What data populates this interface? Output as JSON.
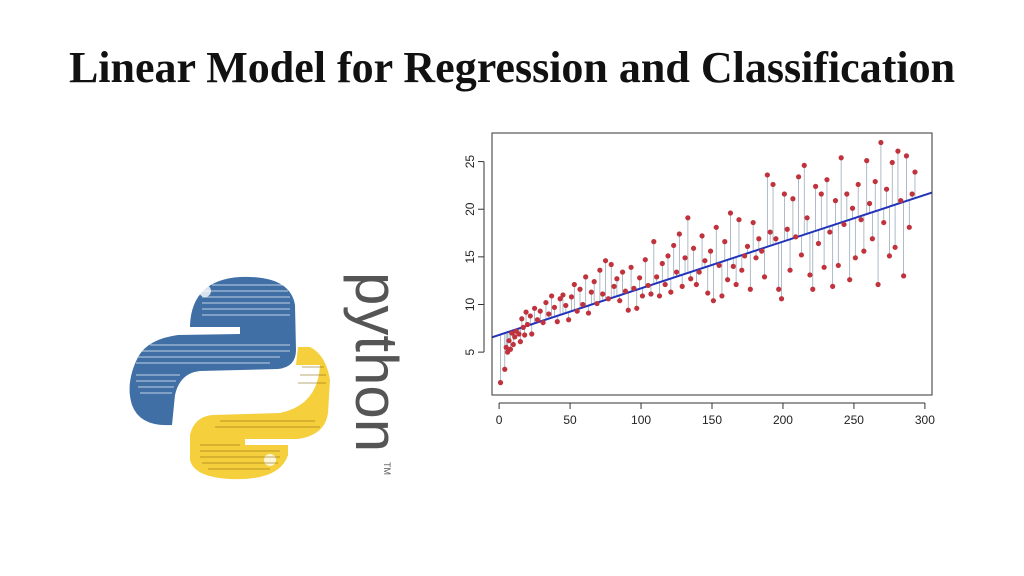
{
  "slide": {
    "title": "Linear Model for Regression and Classification"
  },
  "logo": {
    "icon": "python-logo-icon",
    "wordmark": "python",
    "trademark": "TM",
    "colors": {
      "blue": "#3f6fa5",
      "yellow": "#f5cf3c",
      "wordmark": "#555555"
    }
  },
  "chart_data": {
    "type": "scatter",
    "title": "",
    "xlabel": "",
    "ylabel": "",
    "xlim": [
      -5,
      305
    ],
    "ylim": [
      0.5,
      28
    ],
    "xticks": [
      0,
      50,
      100,
      150,
      200,
      250,
      300
    ],
    "yticks": [
      5,
      10,
      15,
      20,
      25
    ],
    "grid": false,
    "colors": {
      "points": "#c0323c",
      "fit_line": "#2233bb",
      "residuals": "#9aaabb"
    },
    "fit_line": {
      "intercept": 6.8,
      "slope": 0.049
    },
    "points": [
      [
        1,
        1.8
      ],
      [
        4,
        3.2
      ],
      [
        5,
        5.5
      ],
      [
        6,
        5.0
      ],
      [
        7,
        6.2
      ],
      [
        8,
        5.3
      ],
      [
        9,
        7.0
      ],
      [
        10,
        5.8
      ],
      [
        11,
        6.6
      ],
      [
        12,
        7.2
      ],
      [
        14,
        6.9
      ],
      [
        15,
        6.1
      ],
      [
        16,
        8.5
      ],
      [
        17,
        7.6
      ],
      [
        18,
        6.8
      ],
      [
        19,
        9.2
      ],
      [
        20,
        7.9
      ],
      [
        22,
        8.8
      ],
      [
        23,
        6.9
      ],
      [
        25,
        9.6
      ],
      [
        27,
        8.4
      ],
      [
        29,
        9.3
      ],
      [
        31,
        8.1
      ],
      [
        33,
        10.2
      ],
      [
        35,
        9.0
      ],
      [
        37,
        10.9
      ],
      [
        39,
        9.7
      ],
      [
        41,
        8.2
      ],
      [
        43,
        10.6
      ],
      [
        45,
        11.0
      ],
      [
        47,
        9.9
      ],
      [
        49,
        8.4
      ],
      [
        51,
        10.8
      ],
      [
        53,
        12.1
      ],
      [
        55,
        9.3
      ],
      [
        57,
        11.6
      ],
      [
        59,
        10.0
      ],
      [
        61,
        12.9
      ],
      [
        63,
        9.1
      ],
      [
        65,
        11.3
      ],
      [
        67,
        12.4
      ],
      [
        69,
        10.1
      ],
      [
        71,
        13.6
      ],
      [
        73,
        11.1
      ],
      [
        75,
        14.6
      ],
      [
        77,
        10.6
      ],
      [
        79,
        14.2
      ],
      [
        81,
        11.9
      ],
      [
        83,
        12.7
      ],
      [
        85,
        10.4
      ],
      [
        87,
        13.4
      ],
      [
        89,
        11.4
      ],
      [
        91,
        9.4
      ],
      [
        93,
        13.9
      ],
      [
        95,
        11.7
      ],
      [
        97,
        9.6
      ],
      [
        99,
        12.8
      ],
      [
        101,
        10.9
      ],
      [
        103,
        14.7
      ],
      [
        105,
        12.0
      ],
      [
        107,
        11.1
      ],
      [
        109,
        16.6
      ],
      [
        111,
        12.9
      ],
      [
        113,
        10.9
      ],
      [
        115,
        14.3
      ],
      [
        117,
        12.1
      ],
      [
        119,
        15.1
      ],
      [
        121,
        11.3
      ],
      [
        123,
        16.2
      ],
      [
        125,
        13.4
      ],
      [
        127,
        17.4
      ],
      [
        129,
        11.9
      ],
      [
        131,
        14.9
      ],
      [
        133,
        19.1
      ],
      [
        135,
        12.7
      ],
      [
        137,
        15.9
      ],
      [
        139,
        12.1
      ],
      [
        141,
        13.4
      ],
      [
        143,
        17.2
      ],
      [
        145,
        14.6
      ],
      [
        147,
        11.2
      ],
      [
        149,
        15.6
      ],
      [
        151,
        10.4
      ],
      [
        153,
        18.1
      ],
      [
        155,
        14.1
      ],
      [
        157,
        10.9
      ],
      [
        159,
        16.6
      ],
      [
        161,
        12.6
      ],
      [
        163,
        19.6
      ],
      [
        165,
        14.0
      ],
      [
        167,
        12.1
      ],
      [
        169,
        18.9
      ],
      [
        171,
        13.6
      ],
      [
        173,
        15.1
      ],
      [
        175,
        16.1
      ],
      [
        177,
        11.6
      ],
      [
        179,
        18.6
      ],
      [
        181,
        14.9
      ],
      [
        183,
        16.9
      ],
      [
        185,
        15.6
      ],
      [
        187,
        12.9
      ],
      [
        189,
        23.6
      ],
      [
        191,
        17.6
      ],
      [
        193,
        22.6
      ],
      [
        195,
        16.9
      ],
      [
        197,
        11.6
      ],
      [
        199,
        10.6
      ],
      [
        201,
        21.6
      ],
      [
        203,
        17.9
      ],
      [
        205,
        13.6
      ],
      [
        207,
        21.1
      ],
      [
        209,
        17.1
      ],
      [
        211,
        23.4
      ],
      [
        213,
        15.2
      ],
      [
        215,
        24.6
      ],
      [
        217,
        19.1
      ],
      [
        219,
        13.1
      ],
      [
        221,
        11.6
      ],
      [
        223,
        22.4
      ],
      [
        225,
        16.4
      ],
      [
        227,
        21.6
      ],
      [
        229,
        13.9
      ],
      [
        231,
        23.1
      ],
      [
        233,
        17.6
      ],
      [
        235,
        11.9
      ],
      [
        237,
        20.9
      ],
      [
        239,
        14.1
      ],
      [
        241,
        25.4
      ],
      [
        243,
        18.4
      ],
      [
        245,
        21.6
      ],
      [
        247,
        12.6
      ],
      [
        249,
        20.1
      ],
      [
        251,
        14.9
      ],
      [
        253,
        22.6
      ],
      [
        255,
        18.9
      ],
      [
        257,
        15.6
      ],
      [
        259,
        25.1
      ],
      [
        261,
        20.6
      ],
      [
        263,
        16.9
      ],
      [
        265,
        22.9
      ],
      [
        267,
        12.1
      ],
      [
        269,
        27.0
      ],
      [
        271,
        18.6
      ],
      [
        273,
        22.1
      ],
      [
        275,
        15.1
      ],
      [
        277,
        24.9
      ],
      [
        279,
        16.0
      ],
      [
        281,
        26.1
      ],
      [
        283,
        20.9
      ],
      [
        285,
        13.0
      ],
      [
        287,
        25.6
      ],
      [
        289,
        18.1
      ],
      [
        291,
        21.6
      ],
      [
        293,
        23.9
      ]
    ]
  }
}
